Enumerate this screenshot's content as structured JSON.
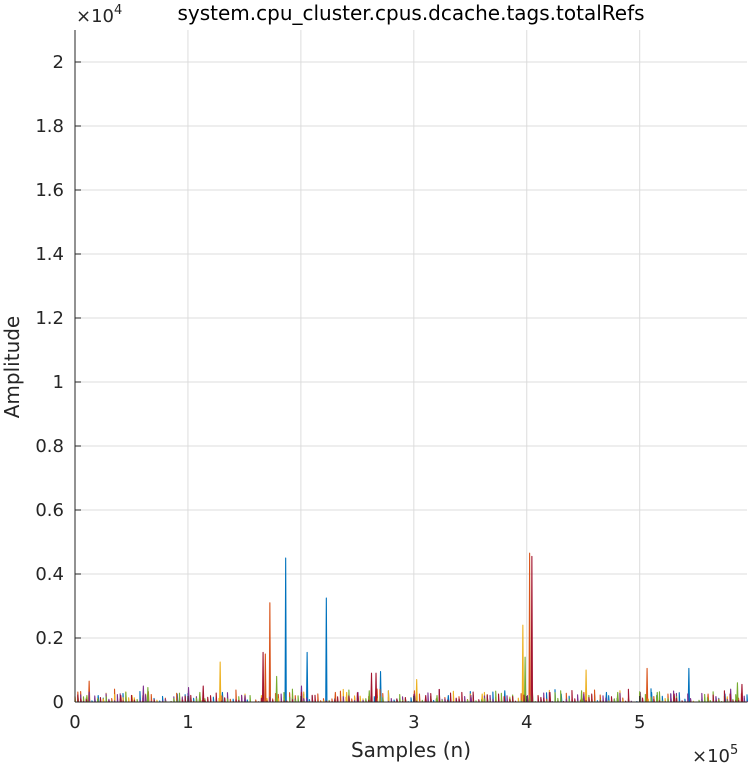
{
  "chart_data": {
    "type": "line",
    "title": "system.cpu_cluster.cpus.dcache.tags.totalRefs",
    "xlabel": "Samples (n)",
    "ylabel": "Amplitude",
    "xlim": [
      0,
      595000
    ],
    "ylim": [
      0,
      21000
    ],
    "x_exponent": {
      "base": "×10",
      "power": "5"
    },
    "y_exponent": {
      "base": "×10",
      "power": "4"
    },
    "x_ticks": [
      0,
      100000,
      200000,
      300000,
      400000,
      500000
    ],
    "x_tick_labels": [
      "0",
      "1",
      "2",
      "3",
      "4",
      "5"
    ],
    "y_ticks": [
      0,
      2000,
      4000,
      6000,
      8000,
      10000,
      12000,
      14000,
      16000,
      18000,
      20000
    ],
    "y_tick_labels": [
      "0",
      "0.2",
      "0.4",
      "0.6",
      "0.8",
      "1",
      "1.2",
      "1.4",
      "1.6",
      "1.8",
      "2"
    ],
    "grid": true,
    "colors": [
      "#0072BD",
      "#D95319",
      "#EDB120",
      "#7E2F8E",
      "#77AC30",
      "#A2142F"
    ],
    "series": [
      {
        "color": "#0072BD",
        "spikes": [
          [
            186000,
            4500
          ],
          [
            222000,
            3250
          ],
          [
            205000,
            1550
          ],
          [
            270000,
            950
          ],
          [
            543000,
            1050
          ],
          [
            380000,
            350
          ],
          [
            130000,
            300
          ],
          [
            575000,
            250
          ],
          [
            470000,
            300
          ],
          [
            20000,
            200
          ],
          [
            90000,
            250
          ],
          [
            330000,
            200
          ],
          [
            430000,
            250
          ],
          [
            510000,
            300
          ],
          [
            250000,
            200
          ]
        ]
      },
      {
        "color": "#D95319",
        "spikes": [
          [
            172000,
            3100
          ],
          [
            168000,
            1500
          ],
          [
            402000,
            4650
          ],
          [
            506000,
            1050
          ],
          [
            12000,
            650
          ],
          [
            300000,
            350
          ],
          [
            350000,
            200
          ],
          [
            450000,
            300
          ],
          [
            60000,
            300
          ],
          [
            110000,
            250
          ],
          [
            230000,
            300
          ],
          [
            560000,
            250
          ]
        ]
      },
      {
        "color": "#EDB120",
        "spikes": [
          [
            396000,
            2400
          ],
          [
            128000,
            1250
          ],
          [
            452000,
            1000
          ],
          [
            302000,
            700
          ],
          [
            50000,
            200
          ],
          [
            150000,
            250
          ],
          [
            240000,
            300
          ],
          [
            360000,
            250
          ],
          [
            480000,
            200
          ],
          [
            590000,
            300
          ]
        ]
      },
      {
        "color": "#7E2F8E",
        "spikes": [
          [
            60000,
            500
          ],
          [
            100000,
            450
          ],
          [
            200000,
            500
          ],
          [
            300000,
            250
          ],
          [
            400000,
            200
          ],
          [
            500000,
            300
          ],
          [
            580000,
            400
          ],
          [
            150000,
            200
          ],
          [
            250000,
            300
          ],
          [
            350000,
            200
          ],
          [
            450000,
            250
          ]
        ]
      },
      {
        "color": "#77AC30",
        "spikes": [
          [
            178000,
            800
          ],
          [
            64000,
            450
          ],
          [
            586000,
            600
          ],
          [
            398000,
            1400
          ],
          [
            448000,
            350
          ],
          [
            515000,
            300
          ],
          [
            10000,
            200
          ],
          [
            110000,
            300
          ],
          [
            260000,
            350
          ],
          [
            320000,
            200
          ],
          [
            480000,
            300
          ]
        ]
      },
      {
        "color": "#A2142F",
        "spikes": [
          [
            404000,
            4550
          ],
          [
            166000,
            1550
          ],
          [
            262000,
            900
          ],
          [
            113000,
            500
          ],
          [
            266000,
            900
          ],
          [
            40000,
            200
          ],
          [
            200000,
            300
          ],
          [
            310000,
            200
          ],
          [
            420000,
            300
          ],
          [
            530000,
            250
          ],
          [
            590000,
            550
          ]
        ]
      }
    ],
    "noise_floor_max": 350
  }
}
